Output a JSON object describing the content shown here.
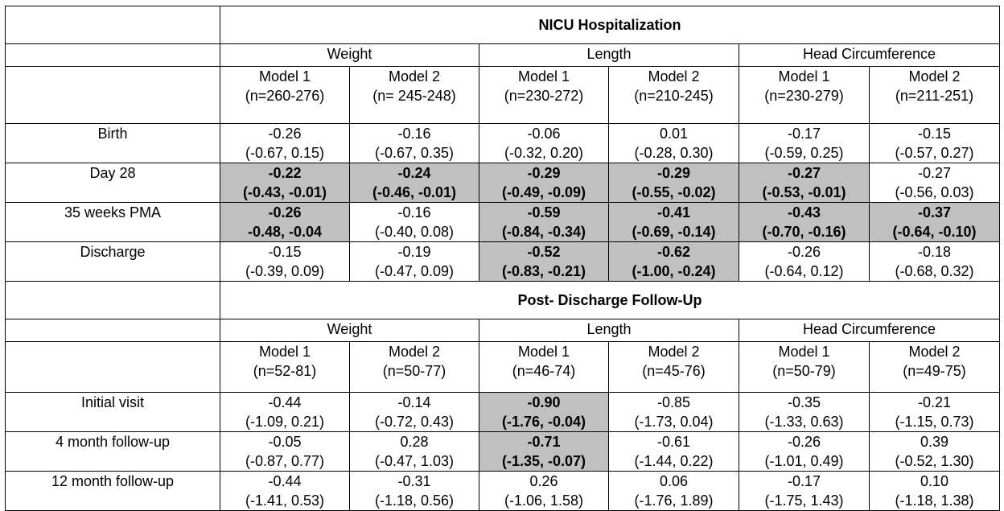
{
  "sections": [
    {
      "title": "NICU Hospitalization",
      "groups": [
        "Weight",
        "Length",
        "Head Circumference"
      ],
      "models": [
        {
          "name": "Model 1",
          "n": "(n=260-276)"
        },
        {
          "name": "Model 2",
          "n": "(n= 245-248)"
        },
        {
          "name": "Model 1",
          "n": "(n=230-272)"
        },
        {
          "name": "Model 2",
          "n": "(n=210-245)"
        },
        {
          "name": "Model 1",
          "n": "(n=230-279)"
        },
        {
          "name": "Model 2",
          "n": "(n=211-251)"
        }
      ],
      "rows": [
        {
          "label": "Birth",
          "cells": [
            {
              "est": "-0.26",
              "ci": "(-0.67, 0.15)",
              "sig": false
            },
            {
              "est": "-0.16",
              "ci": "(-0.67, 0.35)",
              "sig": false
            },
            {
              "est": "-0.06",
              "ci": "(-0.32, 0.20)",
              "sig": false
            },
            {
              "est": "0.01",
              "ci": "(-0.28, 0.30)",
              "sig": false
            },
            {
              "est": "-0.17",
              "ci": "(-0.59, 0.25)",
              "sig": false
            },
            {
              "est": "-0.15",
              "ci": "(-0.57, 0.27)",
              "sig": false
            }
          ]
        },
        {
          "label": "Day 28",
          "cells": [
            {
              "est": "-0.22",
              "ci": "(-0.43, -0.01)",
              "sig": true
            },
            {
              "est": "-0.24",
              "ci": "(-0.46, -0.01)",
              "sig": true
            },
            {
              "est": "-0.29",
              "ci": "(-0.49, -0.09)",
              "sig": true
            },
            {
              "est": "-0.29",
              "ci": "(-0.55, -0.02)",
              "sig": true
            },
            {
              "est": "-0.27",
              "ci": "(-0.53, -0.01)",
              "sig": true
            },
            {
              "est": "-0.27",
              "ci": "(-0.56, 0.03)",
              "sig": false
            }
          ]
        },
        {
          "label": "35 weeks PMA",
          "cells": [
            {
              "est": "-0.26",
              "ci": "-0.48, -0.04",
              "sig": true
            },
            {
              "est": "-0.16",
              "ci": "(-0.40, 0.08)",
              "sig": false
            },
            {
              "est": "-0.59",
              "ci": "(-0.84, -0.34)",
              "sig": true
            },
            {
              "est": "-0.41",
              "ci": "(-0.69, -0.14)",
              "sig": true
            },
            {
              "est": "-0.43",
              "ci": "(-0.70, -0.16)",
              "sig": true
            },
            {
              "est": "-0.37",
              "ci": "(-0.64, -0.10)",
              "sig": true
            }
          ]
        },
        {
          "label": "Discharge",
          "cells": [
            {
              "est": "-0.15",
              "ci": "(-0.39, 0.09)",
              "sig": false
            },
            {
              "est": "-0.19",
              "ci": "(-0.47, 0.09)",
              "sig": false
            },
            {
              "est": "-0.52",
              "ci": "(-0.83, -0.21)",
              "sig": true
            },
            {
              "est": "-0.62",
              "ci": "(-1.00, -0.24)",
              "sig": true
            },
            {
              "est": "-0.26",
              "ci": "(-0.64, 0.12)",
              "sig": false
            },
            {
              "est": "-0.18",
              "ci": "(-0.68, 0.32)",
              "sig": false
            }
          ]
        }
      ]
    },
    {
      "title": "Post- Discharge Follow-Up",
      "groups": [
        "Weight",
        "Length",
        "Head Circumference"
      ],
      "models": [
        {
          "name": "Model 1",
          "n": "(n=52-81)"
        },
        {
          "name": "Model 2",
          "n": "(n=50-77)"
        },
        {
          "name": "Model 1",
          "n": "(n=46-74)"
        },
        {
          "name": "Model 2",
          "n": "(n=45-76)"
        },
        {
          "name": "Model 1",
          "n": "(n=50-79)"
        },
        {
          "name": "Model 2",
          "n": "(n=49-75)"
        }
      ],
      "rows": [
        {
          "label": "Initial visit",
          "cells": [
            {
              "est": "-0.44",
              "ci": "(-1.09, 0.21)",
              "sig": false
            },
            {
              "est": "-0.14",
              "ci": "(-0.72, 0.43)",
              "sig": false
            },
            {
              "est": "-0.90",
              "ci": "(-1.76, -0.04)",
              "sig": true
            },
            {
              "est": "-0.85",
              "ci": "(-1.73, 0.04)",
              "sig": false
            },
            {
              "est": "-0.35",
              "ci": "(-1.33, 0.63)",
              "sig": false
            },
            {
              "est": "-0.21",
              "ci": "(-1.15, 0.73)",
              "sig": false
            }
          ]
        },
        {
          "label": "4 month follow-up",
          "cells": [
            {
              "est": "-0.05",
              "ci": "(-0.87, 0.77)",
              "sig": false
            },
            {
              "est": "0.28",
              "ci": "(-0.47, 1.03)",
              "sig": false
            },
            {
              "est": "-0.71",
              "ci": "(-1.35, -0.07)",
              "sig": true
            },
            {
              "est": "-0.61",
              "ci": "(-1.44, 0.22)",
              "sig": false
            },
            {
              "est": "-0.26",
              "ci": "(-1.01, 0.49)",
              "sig": false
            },
            {
              "est": "0.39",
              "ci": "(-0.52, 1.30)",
              "sig": false
            }
          ]
        },
        {
          "label": "12 month follow-up",
          "cells": [
            {
              "est": "-0.44",
              "ci": "(-1.41, 0.53)",
              "sig": false
            },
            {
              "est": "-0.31",
              "ci": "(-1.18, 0.56)",
              "sig": false
            },
            {
              "est": "0.26",
              "ci": "(-1.06, 1.58)",
              "sig": false
            },
            {
              "est": "0.06",
              "ci": "(-1.76, 1.89)",
              "sig": false
            },
            {
              "est": "-0.17",
              "ci": "(-1.75, 1.43)",
              "sig": false
            },
            {
              "est": "0.10",
              "ci": "(-1.18, 1.38)",
              "sig": false
            }
          ]
        }
      ]
    }
  ]
}
